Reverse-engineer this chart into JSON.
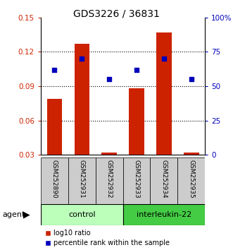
{
  "title": "GDS3226 / 36831",
  "samples": [
    "GSM252890",
    "GSM252931",
    "GSM252932",
    "GSM252933",
    "GSM252934",
    "GSM252935"
  ],
  "log10_ratio": [
    0.079,
    0.127,
    0.032,
    0.088,
    0.137,
    0.032
  ],
  "percentile_rank_pct": [
    62,
    70,
    55,
    62,
    70,
    55
  ],
  "ylim_left": [
    0.03,
    0.15
  ],
  "ylim_right": [
    0,
    100
  ],
  "yticks_left": [
    0.03,
    0.06,
    0.09,
    0.12,
    0.15
  ],
  "yticks_right": [
    0,
    25,
    50,
    75,
    100
  ],
  "ytick_labels_left": [
    "0.03",
    "0.06",
    "0.09",
    "0.12",
    "0.15"
  ],
  "ytick_labels_right": [
    "0",
    "25",
    "50",
    "75",
    "100%"
  ],
  "bar_color": "#cc2200",
  "dot_color": "#0000bb",
  "bar_bottom": 0.03,
  "agent_label": "agent",
  "legend_red_label": "log10 ratio",
  "legend_blue_label": "percentile rank within the sample",
  "left_tick_color": "#cc2200",
  "right_tick_color": "#0000bb",
  "control_color": "#bbffbb",
  "il22_color": "#44cc44",
  "gray_color": "#cccccc"
}
